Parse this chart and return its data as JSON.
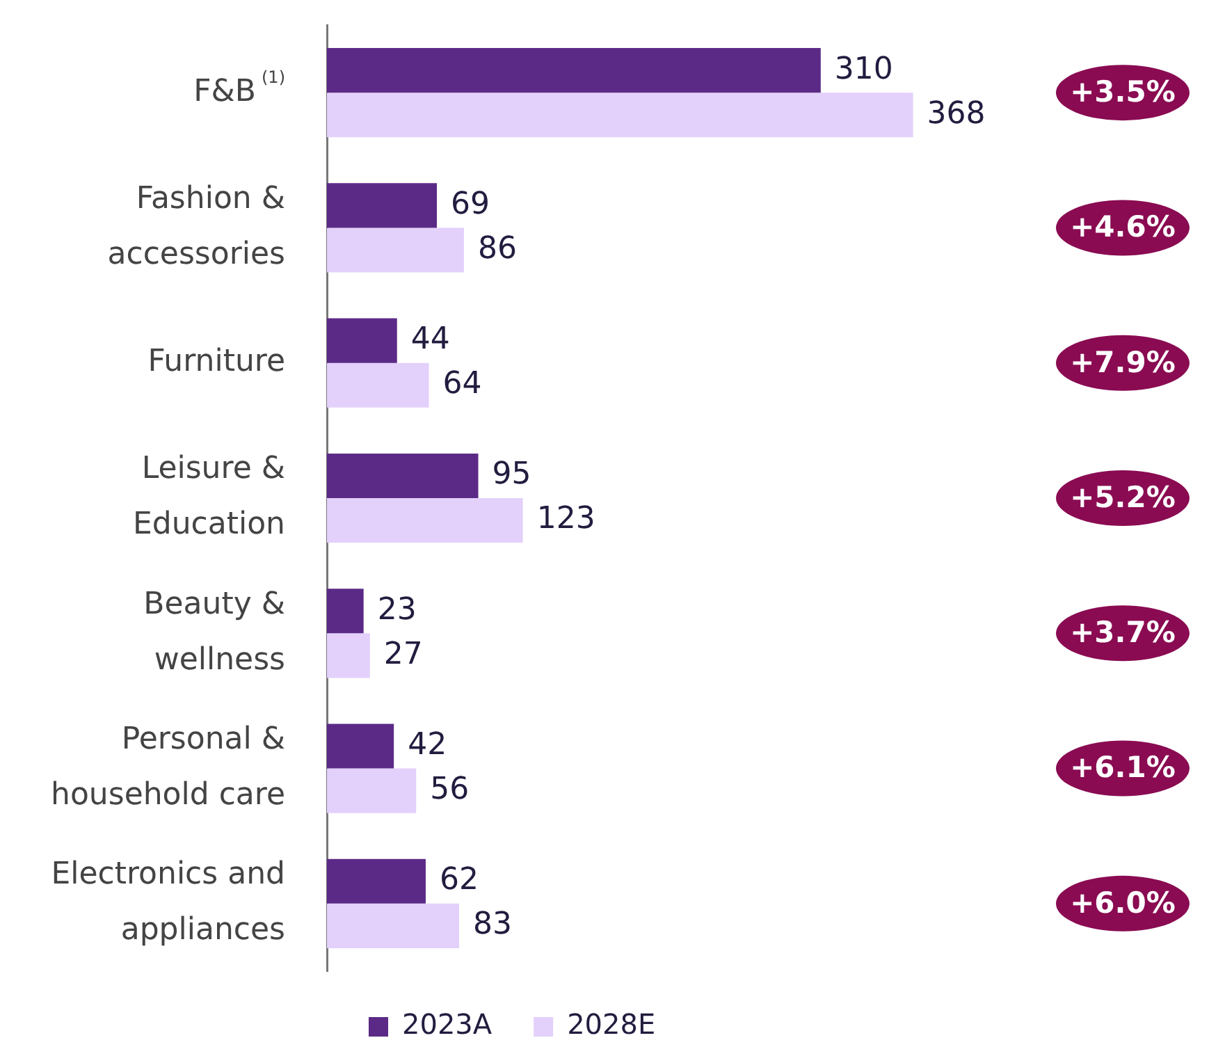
{
  "chart_data": {
    "type": "bar",
    "orientation": "horizontal",
    "categories": [
      "F&B$^{(1)}$",
      "Fashion & accessories",
      "Furniture",
      "Leisure & Education",
      "Beauty & wellness",
      "Personal & household care",
      "Electronics and appliances"
    ],
    "series": [
      {
        "name": "2023A",
        "color": "#5b2a86",
        "values": [
          310,
          69,
          44,
          95,
          23,
          42,
          62
        ]
      },
      {
        "name": "2028E",
        "color": "#e3d0fb",
        "values": [
          368,
          86,
          64,
          123,
          27,
          56,
          83
        ]
      }
    ],
    "data_labels": true,
    "legend": "bottom",
    "annotations": [
      "+3.5%",
      "+4.6%",
      "+7.9%",
      "+5.2%",
      "+3.7%",
      "+6.1%",
      "+6.0%"
    ]
  }
}
